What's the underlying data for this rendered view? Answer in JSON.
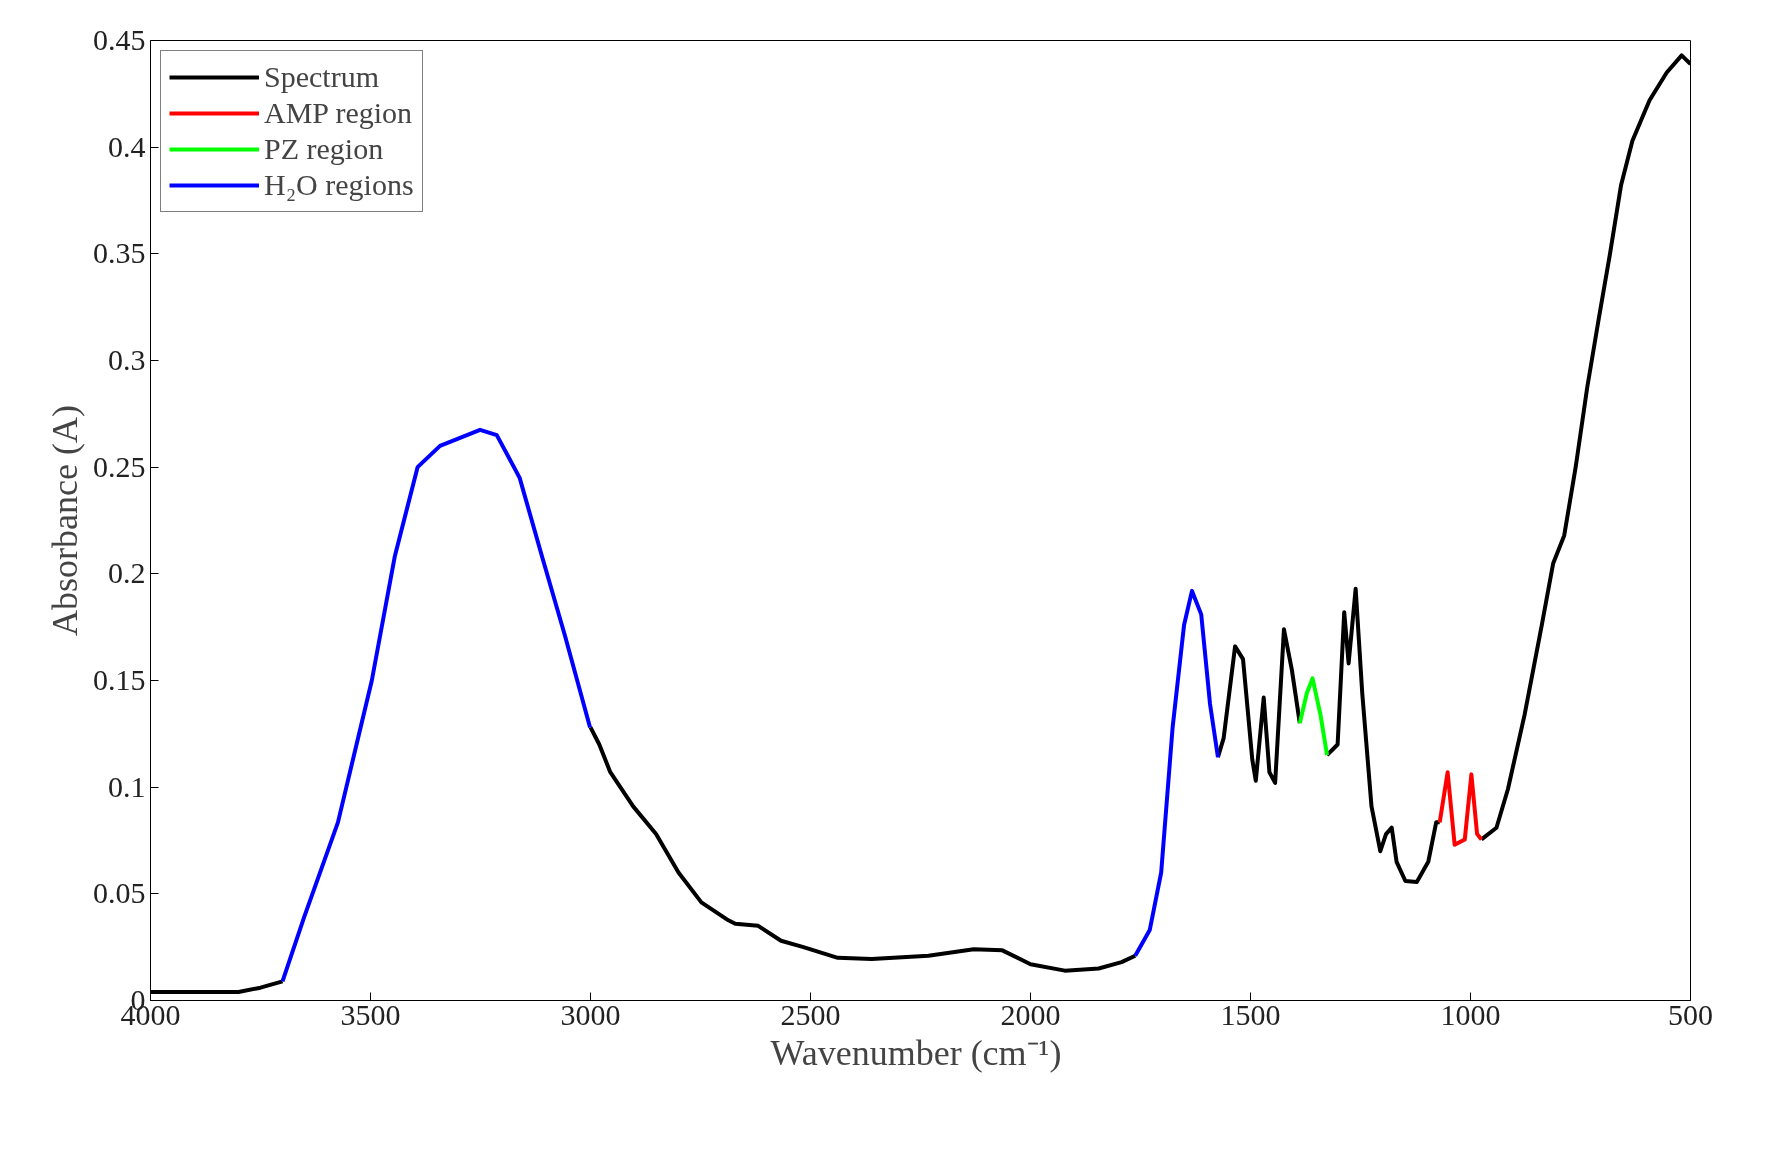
{
  "chart_data": {
    "type": "line",
    "xlabel": "Wavenumber  (cm⁻¹)",
    "ylabel": "Absorbance (A)",
    "xlim": [
      4000,
      500
    ],
    "ylim": [
      0,
      0.45
    ],
    "xticks": [
      4000,
      3500,
      3000,
      2500,
      2000,
      1500,
      1000,
      500
    ],
    "yticks": [
      0,
      0.05,
      0.1,
      0.15,
      0.2,
      0.25,
      0.3,
      0.35,
      0.4,
      0.45
    ],
    "grid": false,
    "legend": "top left",
    "line_style": "solid",
    "marker": "none",
    "series": [
      {
        "name": "Spectrum",
        "color": "#000000",
        "x": [
          4000,
          3900,
          3800,
          3750,
          3700,
          3350,
          3000,
          2980,
          2955,
          2903,
          2851,
          2800,
          2748,
          2690,
          2671,
          2619,
          2567,
          2516,
          2438,
          2361,
          2232,
          2129,
          2064,
          2000,
          1922,
          1845,
          1793,
          1762,
          1670,
          1574,
          1561,
          1535,
          1517,
          1496,
          1488,
          1470,
          1457,
          1444,
          1424,
          1406,
          1388,
          1360,
          1326,
          1302,
          1287,
          1277,
          1261,
          1246,
          1225,
          1205,
          1192,
          1179,
          1168,
          1148,
          1122,
          1096,
          1078,
          1070,
          1020,
          975,
          941,
          915,
          877,
          838,
          812,
          787,
          761,
          735,
          709,
          683,
          658,
          632,
          593,
          554,
          520,
          500
        ],
        "values": [
          0.004,
          0.004,
          0.004,
          0.006,
          0.009,
          null,
          0.128,
          0.12,
          0.107,
          0.091,
          0.078,
          0.06,
          0.046,
          0.038,
          0.036,
          0.035,
          0.028,
          0.025,
          0.02,
          0.0195,
          0.021,
          0.024,
          0.0235,
          0.017,
          0.014,
          0.015,
          0.018,
          0.021,
          null,
          0.114,
          0.123,
          0.166,
          0.16,
          0.113,
          0.103,
          0.142,
          0.107,
          0.102,
          0.174,
          0.155,
          0.13,
          null,
          0.115,
          0.12,
          0.182,
          0.158,
          0.193,
          0.144,
          0.091,
          0.07,
          0.078,
          0.081,
          0.065,
          0.056,
          0.0555,
          0.065,
          0.0835,
          0.0835,
          null,
          0.0755,
          0.081,
          0.099,
          0.134,
          0.176,
          0.205,
          0.218,
          0.25,
          0.287,
          0.319,
          0.35,
          0.382,
          0.403,
          0.422,
          0.435,
          0.443,
          0.439
        ]
      },
      {
        "name": "AMP region",
        "color": "#ff0000",
        "x": [
          1070,
          1052,
          1036,
          1013,
          998,
          985,
          975
        ],
        "values": [
          0.0835,
          0.107,
          0.073,
          0.0755,
          0.106,
          0.078,
          0.0755
        ]
      },
      {
        "name": "PZ region",
        "color": "#00ff00",
        "x": [
          1388,
          1372,
          1359,
          1341,
          1326
        ],
        "values": [
          0.13,
          0.144,
          0.151,
          0.134,
          0.115
        ]
      },
      {
        "name": "H₂O regions",
        "color": "#0000ff",
        "x": [
          3700,
          3651,
          3574,
          3497,
          3445,
          3393,
          3342,
          3251,
          3213,
          3161,
          3110,
          3058,
          3001,
          2400,
          1762,
          1729,
          1703,
          1677,
          1651,
          1633,
          1612,
          1592,
          1574
        ],
        "values": [
          0.009,
          0.039,
          0.0835,
          0.15,
          0.208,
          0.25,
          0.26,
          0.2675,
          0.265,
          0.245,
          0.208,
          0.171,
          0.128,
          null,
          0.021,
          0.033,
          0.06,
          0.128,
          0.176,
          0.192,
          0.181,
          0.139,
          0.114
        ]
      }
    ]
  }
}
